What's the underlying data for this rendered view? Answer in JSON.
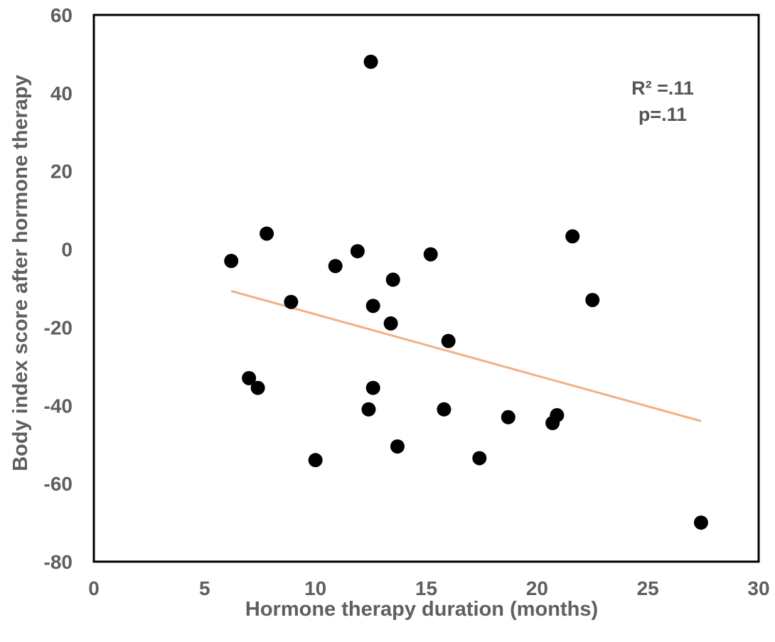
{
  "chart_data": {
    "type": "scatter",
    "xlabel": "Hormone therapy duration (months)",
    "ylabel": "Body index score after hormone therapy",
    "xlim": [
      0,
      30
    ],
    "ylim": [
      -80,
      60
    ],
    "x_ticks": [
      "0",
      "5",
      "10",
      "15",
      "20",
      "25",
      "30"
    ],
    "y_ticks": [
      "60",
      "40",
      "20",
      "0",
      "-20",
      "-40",
      "-60",
      "-80"
    ],
    "grid": false,
    "points": [
      {
        "x": 6.2,
        "y": -3
      },
      {
        "x": 7.0,
        "y": -33
      },
      {
        "x": 7.4,
        "y": -35.5
      },
      {
        "x": 7.8,
        "y": 4
      },
      {
        "x": 8.9,
        "y": -13.5
      },
      {
        "x": 10.0,
        "y": -54
      },
      {
        "x": 10.9,
        "y": -4.3
      },
      {
        "x": 11.9,
        "y": -0.5
      },
      {
        "x": 12.4,
        "y": -41
      },
      {
        "x": 12.5,
        "y": 48
      },
      {
        "x": 12.6,
        "y": -14.5
      },
      {
        "x": 12.6,
        "y": -35.5
      },
      {
        "x": 13.4,
        "y": -19
      },
      {
        "x": 13.5,
        "y": -7.8
      },
      {
        "x": 13.7,
        "y": -50.5
      },
      {
        "x": 15.2,
        "y": -1.3
      },
      {
        "x": 15.8,
        "y": -41
      },
      {
        "x": 16.0,
        "y": -23.5
      },
      {
        "x": 17.4,
        "y": -53.5
      },
      {
        "x": 18.7,
        "y": -43
      },
      {
        "x": 20.7,
        "y": -44.5
      },
      {
        "x": 20.9,
        "y": -42.5
      },
      {
        "x": 21.6,
        "y": 3.3
      },
      {
        "x": 22.5,
        "y": -13
      },
      {
        "x": 27.4,
        "y": -70
      }
    ],
    "trendline": {
      "x1": 6.2,
      "y1": -10.7,
      "x2": 27.4,
      "y2": -44,
      "color": "#f2b084"
    },
    "point_color": "#000000",
    "annotation_lines": [
      "R² =.11",
      "p=.11"
    ]
  }
}
